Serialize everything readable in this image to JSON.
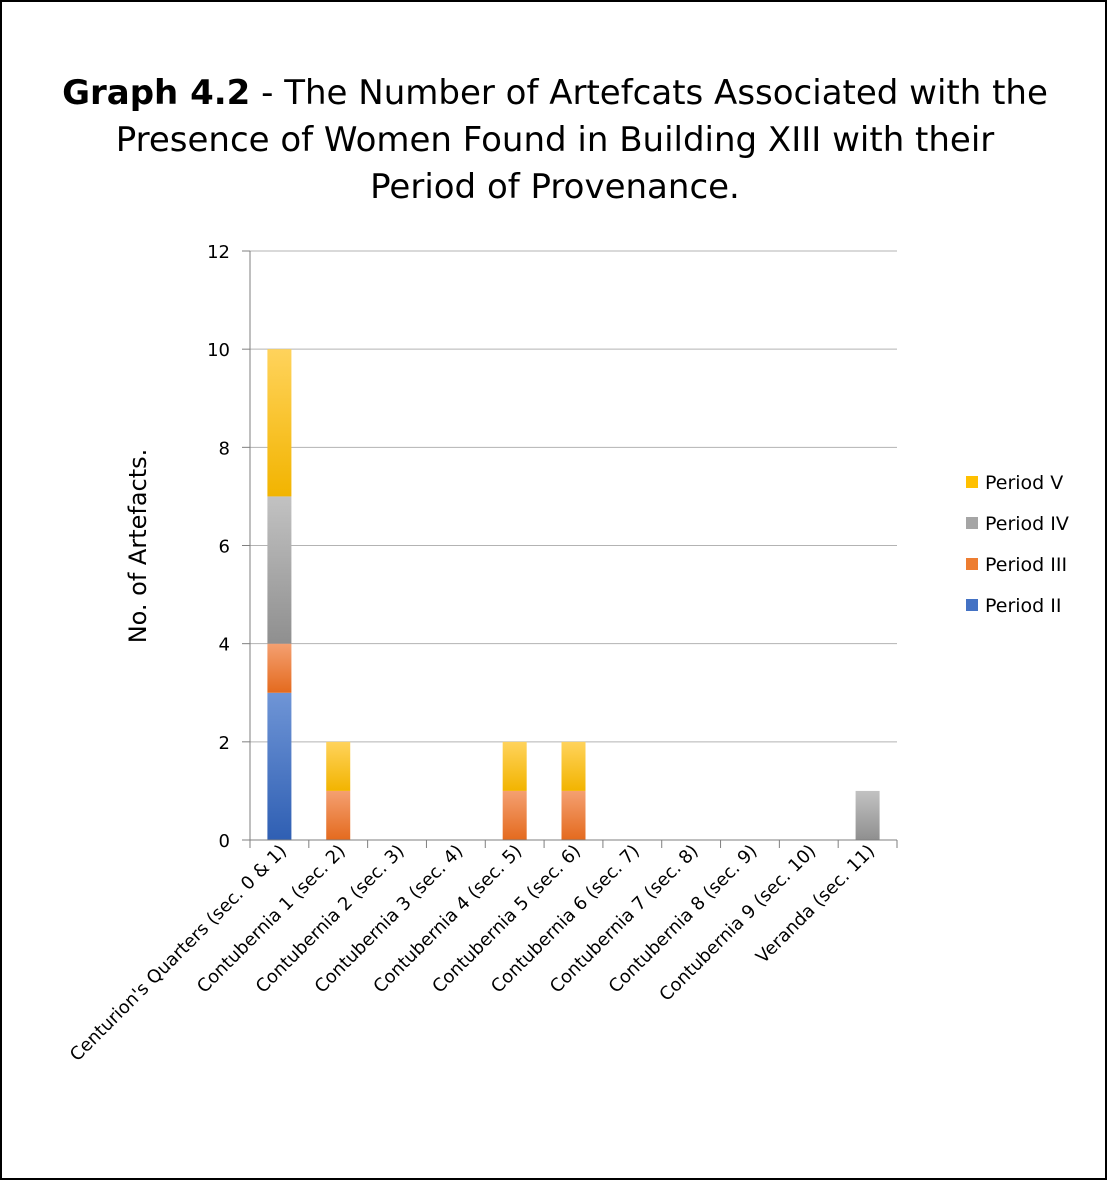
{
  "chart_data": {
    "type": "bar",
    "stacked": true,
    "title_bold": "Graph 4.2",
    "title_rest": " - The Number of Artefcats Associated with the Presence of Women Found in Building XIII with their Period of Provenance.",
    "ylabel": "No. of Artefacts.",
    "xlabel": "",
    "ylim": [
      0,
      12
    ],
    "yticks": [
      0,
      2,
      4,
      6,
      8,
      10,
      12
    ],
    "grid": true,
    "legend_position": "right",
    "categories": [
      "Centurion's Quarters (sec. 0 & 1)",
      "Contubernia 1 (sec. 2)",
      "Contubernia 2 (sec. 3)",
      "Contubernia 3 (sec. 4)",
      "Contubernia 4 (sec. 5)",
      "Contubernia 5 (sec. 6)",
      "Contubernia 6 (sec. 7)",
      "Contubernia 7 (sec. 8)",
      "Contubernia 8 (sec. 9)",
      "Contubernia 9 (sec. 10)",
      "Veranda (sec. 11)"
    ],
    "series": [
      {
        "name": "Period II",
        "color": "#4472C4",
        "values": [
          3,
          0,
          0,
          0,
          0,
          0,
          0,
          0,
          0,
          0,
          0
        ]
      },
      {
        "name": "Period III",
        "color": "#ED7D31",
        "values": [
          1,
          1,
          0,
          0,
          1,
          1,
          0,
          0,
          0,
          0,
          0
        ]
      },
      {
        "name": "Period IV",
        "color": "#A5A5A5",
        "values": [
          3,
          0,
          0,
          0,
          0,
          0,
          0,
          0,
          0,
          0,
          1
        ]
      },
      {
        "name": "Period V",
        "color": "#FFC000",
        "values": [
          3,
          1,
          0,
          0,
          1,
          1,
          0,
          0,
          0,
          0,
          0
        ]
      }
    ],
    "legend_order": [
      "Period V",
      "Period IV",
      "Period III",
      "Period II"
    ]
  }
}
